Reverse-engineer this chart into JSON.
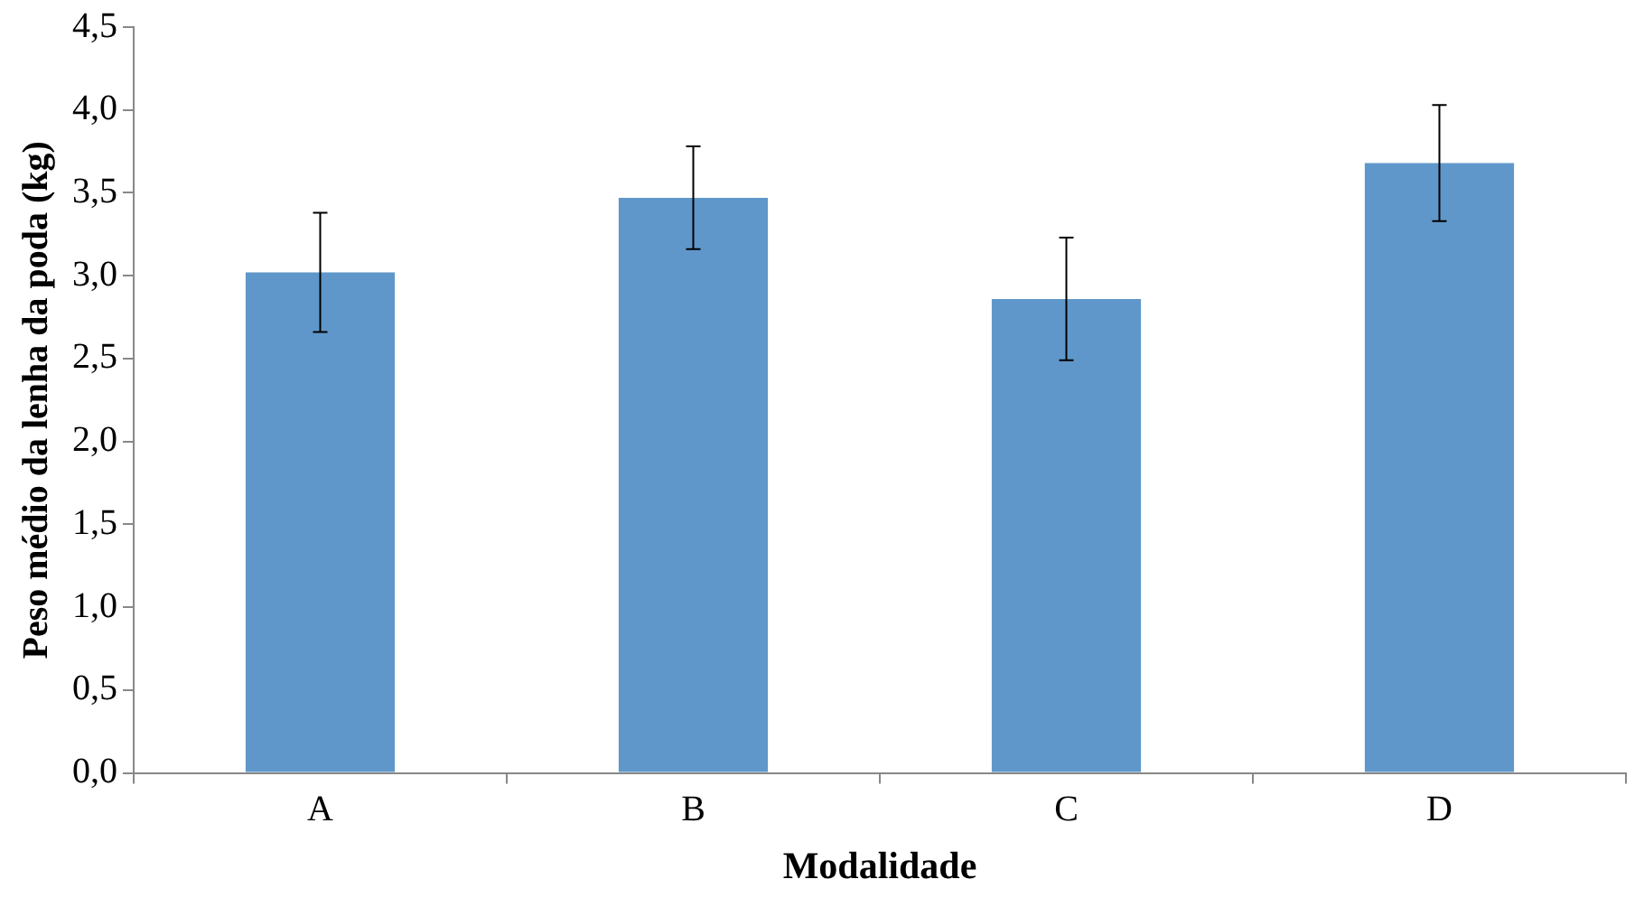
{
  "chart_data": {
    "type": "bar",
    "xlabel": "Modalidade",
    "ylabel": "Peso médio da lenha da poda (kg)",
    "categories": [
      "A",
      "B",
      "C",
      "D"
    ],
    "values": [
      3.02,
      3.47,
      2.86,
      3.68
    ],
    "errors": [
      0.36,
      0.31,
      0.37,
      0.35
    ],
    "color": "#6097ca",
    "ylim": [
      0,
      4.5
    ],
    "yticks": [
      {
        "value": 0,
        "label": "0,0"
      },
      {
        "value": 0.5,
        "label": "0,5"
      },
      {
        "value": 1,
        "label": "1,0"
      },
      {
        "value": 1.5,
        "label": "1,5"
      },
      {
        "value": 2,
        "label": "2,0"
      },
      {
        "value": 2.5,
        "label": "2,5"
      },
      {
        "value": 3,
        "label": "3,0"
      },
      {
        "value": 3.5,
        "label": "3,5"
      },
      {
        "value": 4,
        "label": "4,0"
      },
      {
        "value": 4.5,
        "label": "4,5"
      }
    ],
    "grid": false,
    "legend": false
  }
}
